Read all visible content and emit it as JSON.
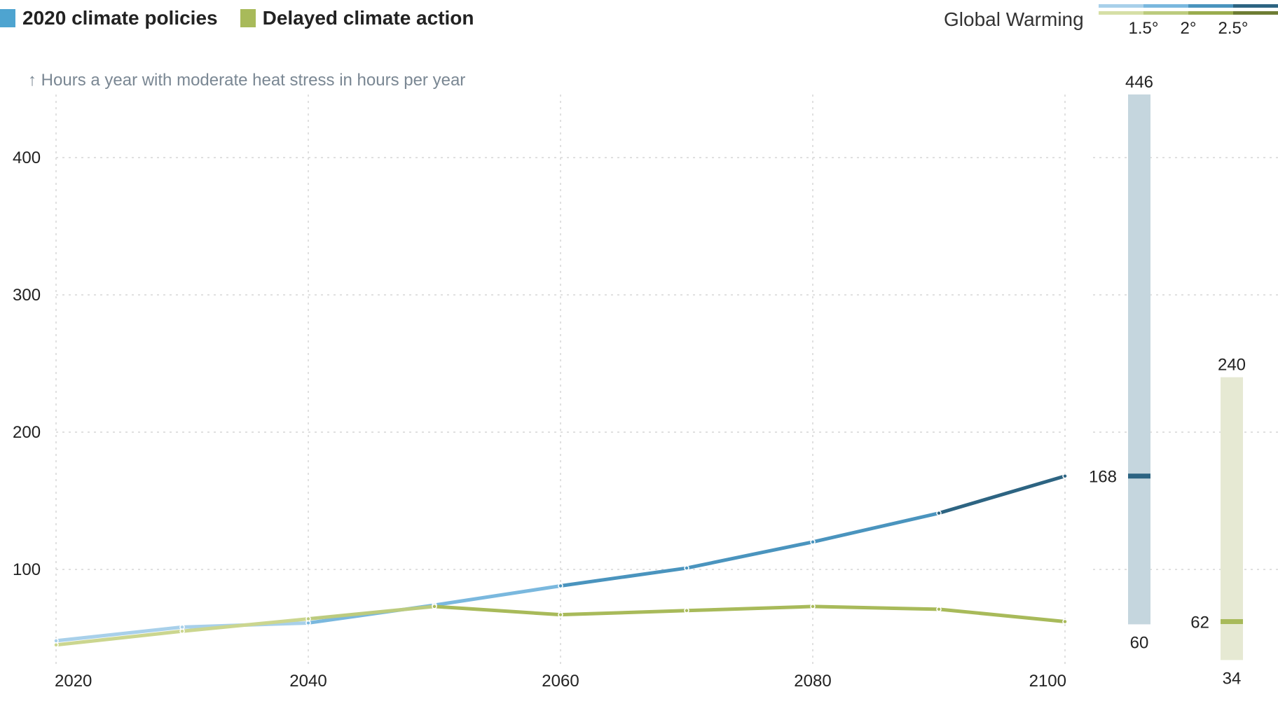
{
  "legend": {
    "items": [
      {
        "label": "2020 climate policies",
        "color": "#4ea4d0"
      },
      {
        "label": "Delayed climate action",
        "color": "#a8ba5a"
      }
    ],
    "warming_title": "Global Warming",
    "warming_levels": [
      "1.5°",
      "2°",
      "2.5°"
    ],
    "warming_colors_blue": [
      "#a8d0ea",
      "#7ab8de",
      "#4a94be",
      "#2d6482"
    ],
    "warming_colors_green": [
      "#d6dfa6",
      "#bccb7e",
      "#9aac4e",
      "#6e7d34"
    ]
  },
  "chart_data": {
    "type": "line",
    "ylabel": "↑ Hours a year with moderate heat stress in hours per year",
    "xlabel": "",
    "x": [
      2020,
      2030,
      2040,
      2050,
      2060,
      2070,
      2080,
      2090,
      2100
    ],
    "xticks": [
      2020,
      2040,
      2060,
      2080,
      2100
    ],
    "yticks": [
      100,
      200,
      300,
      400
    ],
    "xlim": [
      2020,
      2100
    ],
    "ylim": [
      40,
      446
    ],
    "grid": true,
    "series": [
      {
        "name": "2020 climate policies",
        "values": [
          48,
          58,
          61,
          74,
          88,
          101,
          120,
          141,
          168
        ],
        "color": "#4a94be",
        "segment_colors": [
          "#a8d0ea",
          "#a8d0ea",
          "#7ab8de",
          "#7ab8de",
          "#4a94be",
          "#4a94be",
          "#4a94be",
          "#2d6482"
        ]
      },
      {
        "name": "Delayed climate action",
        "values": [
          45,
          55,
          64,
          73,
          67,
          70,
          73,
          71,
          62
        ],
        "color": "#a8ba5a",
        "segment_colors": [
          "#cbd68f",
          "#cbd68f",
          "#bccb7e",
          "#a8ba5a",
          "#a8ba5a",
          "#a8ba5a",
          "#a8ba5a",
          "#a8ba5a"
        ]
      }
    ],
    "ranges": [
      {
        "series": "2020 climate policies",
        "max": 446,
        "min": 60,
        "value": 168,
        "bar_color": "#c5d6de",
        "marker_color": "#2d6482"
      },
      {
        "series": "Delayed climate action",
        "max": 240,
        "min": 34,
        "value": 62,
        "bar_color": "#e6e9d3",
        "marker_color": "#a8ba5a"
      }
    ]
  }
}
